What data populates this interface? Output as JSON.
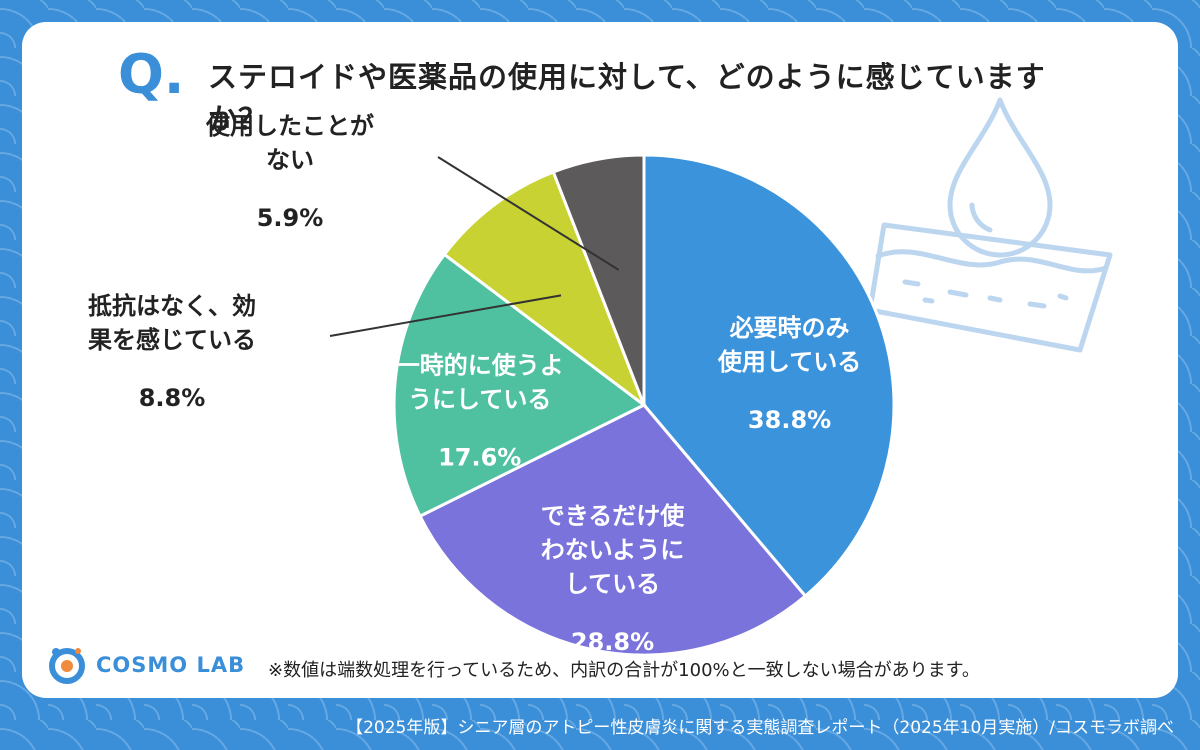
{
  "question": {
    "mark": "Q.",
    "text": "ステロイドや医薬品の使用に対して、どのように感じていますか？"
  },
  "chart_data": {
    "type": "pie",
    "slices": [
      {
        "label": "必要時のみ使用している",
        "lines": [
          "必要時のみ",
          "使用している"
        ],
        "value": 38.8,
        "display": "38.8%",
        "color": "#3b93dc"
      },
      {
        "label": "できるだけ使わないようにしている",
        "lines": [
          "できるだけ使",
          "わないように",
          "している"
        ],
        "value": 28.8,
        "display": "28.8%",
        "color": "#7b73dc"
      },
      {
        "label": "一時的に使うようにしている",
        "lines": [
          "一時的に使うよ",
          "うにしている"
        ],
        "value": 17.6,
        "display": "17.6%",
        "color": "#4fc0a0"
      },
      {
        "label": "抵抗はなく、効果を感じている",
        "lines": [
          "抵抗はなく、効",
          "果を感じている"
        ],
        "value": 8.8,
        "display": "8.8%",
        "color": "#c8d232"
      },
      {
        "label": "使用したことがない",
        "lines": [
          "使用したことが",
          "ない"
        ],
        "value": 5.9,
        "display": "5.9%",
        "color": "#5d5a5c"
      }
    ]
  },
  "footnote": "※数値は端数処理を行っているため、内訳の合計が100%と一致しない場合があります。",
  "logo": {
    "text": "COSMO LAB",
    "icon": "cosmo-lab-logo-icon"
  },
  "footer": "【2025年版】シニア層のアトピー性皮膚炎に関する実態調査レポート（2025年10月実施）/コスモラボ調べ",
  "decoration": {
    "icon": "water-drop-skin-icon",
    "color": "#bcd6ef"
  }
}
